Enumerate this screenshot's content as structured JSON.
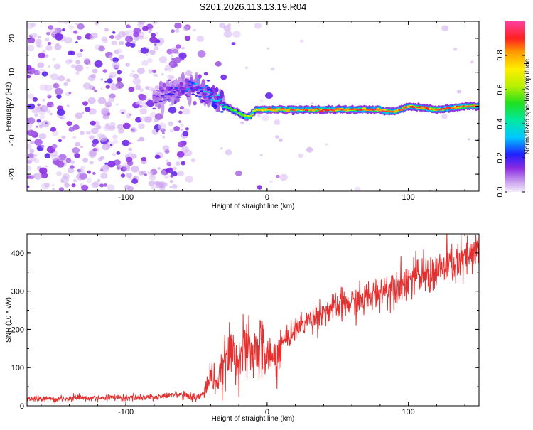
{
  "title": "S201.2026.113.13.19.R04",
  "chart_data": [
    {
      "type": "heatmap",
      "name": "spectrogram",
      "xlabel": "Height of straight line (km)",
      "ylabel": "Frequency (Hz)",
      "xlim": [
        -170,
        150
      ],
      "ylim": [
        -25,
        25
      ],
      "xticks": [
        -100,
        0,
        100
      ],
      "yticks": [
        -20,
        -10,
        0,
        10,
        20
      ],
      "grid": false,
      "description_points_centerline": {
        "x": [
          -80,
          -70,
          -60,
          -50,
          -45,
          -40,
          -35,
          -30,
          -25,
          -20,
          -15,
          -12,
          -8,
          -5,
          0,
          20,
          40,
          60,
          80,
          85,
          90,
          95,
          100,
          120,
          140,
          150
        ],
        "y": [
          2,
          4,
          5,
          6,
          4,
          3,
          2,
          0,
          -1,
          -2,
          -3,
          -3,
          -1,
          -1,
          -1,
          -1,
          -1,
          -1,
          -1,
          -1.5,
          -1.5,
          -1,
          0,
          -1,
          0,
          0
        ],
        "amplitude": [
          0.15,
          0.2,
          0.25,
          0.3,
          0.35,
          0.4,
          0.45,
          0.5,
          0.55,
          0.6,
          0.65,
          0.7,
          0.75,
          0.8,
          0.85,
          0.9,
          0.9,
          0.9,
          0.92,
          0.95,
          0.85,
          0.9,
          0.95,
          0.9,
          0.95,
          0.95
        ]
      },
      "colorbar": {
        "label": "Normalized spectral amplitude",
        "range": [
          0,
          1
        ],
        "ticks": [
          "0.0",
          "0.2",
          "0.4",
          "0.6",
          "0.8"
        ],
        "tick_values": [
          0,
          0.2,
          0.4,
          0.6,
          0.8
        ]
      }
    },
    {
      "type": "line",
      "name": "snr",
      "xlabel": "Height of straight line (km)",
      "ylabel": "SNR (10 * v/v)",
      "xlim": [
        -170,
        150
      ],
      "ylim": [
        0,
        450
      ],
      "xticks": [
        -100,
        0,
        100
      ],
      "yticks": [
        0,
        100,
        200,
        300,
        400
      ],
      "grid": false,
      "color": "#e63030",
      "x": [
        -170,
        -150,
        -130,
        -110,
        -90,
        -80,
        -70,
        -60,
        -55,
        -50,
        -45,
        -40,
        -35,
        -30,
        -25,
        -20,
        -15,
        -10,
        -5,
        0,
        5,
        10,
        20,
        30,
        40,
        50,
        60,
        70,
        80,
        90,
        100,
        110,
        120,
        130,
        140,
        145,
        150
      ],
      "y": [
        15,
        15,
        17,
        18,
        20,
        20,
        25,
        30,
        25,
        20,
        30,
        80,
        60,
        110,
        140,
        130,
        150,
        125,
        160,
        130,
        120,
        160,
        200,
        225,
        245,
        260,
        270,
        280,
        300,
        315,
        330,
        340,
        350,
        370,
        380,
        390,
        400
      ]
    }
  ]
}
